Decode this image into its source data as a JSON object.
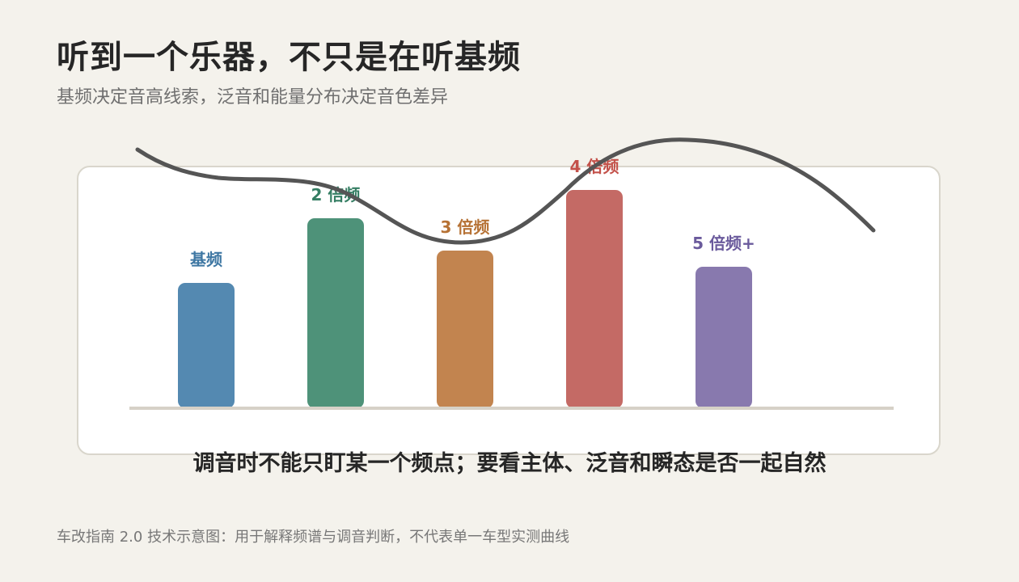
{
  "title": "听到一个乐器，不只是在听基频",
  "subtitle": "基频决定音高线索，泛音和能量分布决定音色差异",
  "caption": "调音时不能只盯某一个频点；要看主体、泛音和瞬态是否一起自然",
  "footer": "车改指南 2.0 技术示意图：用于解释频谱与调音判断，不代表单一车型实测曲线",
  "chart_data": {
    "type": "bar",
    "categories": [
      "基频",
      "2 倍频",
      "3 倍频",
      "4 倍频",
      "5 倍频+"
    ],
    "values": [
      155,
      235,
      195,
      270,
      175
    ],
    "colors": [
      "#5489b1",
      "#4e9279",
      "#c2844f",
      "#c46a65",
      "#8879ae"
    ],
    "label_colors": [
      "#3e77a3",
      "#357e63",
      "#b67235",
      "#c3514a",
      "#6a5a9c"
    ],
    "curve_color": "#555555",
    "ylim": [
      0,
      300
    ],
    "grid": false,
    "legend": "none"
  }
}
